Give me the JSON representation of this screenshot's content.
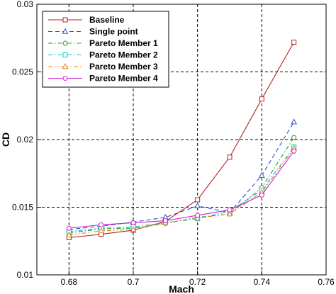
{
  "chart_data": {
    "type": "line",
    "title": "",
    "xlabel": "Mach",
    "ylabel": "CD",
    "xlim": [
      0.67,
      0.76
    ],
    "ylim": [
      0.01,
      0.03
    ],
    "xticks": [
      "0.68",
      "0.7",
      "0.72",
      "0.74",
      "0.76"
    ],
    "xtick_values": [
      0.68,
      0.7,
      0.72,
      0.74,
      0.76
    ],
    "yticks": [
      "0.01",
      "0.015",
      "0.02",
      "0.025",
      "0.03"
    ],
    "ytick_values": [
      0.01,
      0.015,
      0.02,
      0.025,
      0.03
    ],
    "grid": "dashed",
    "legend_position": "top-left",
    "x": [
      0.68,
      0.69,
      0.7,
      0.71,
      0.72,
      0.73,
      0.74,
      0.75
    ],
    "series": [
      {
        "name": "Baseline",
        "color": "#b22222",
        "marker": "square",
        "dash": "solid",
        "values": [
          0.01275,
          0.013,
          0.0133,
          0.01395,
          0.01555,
          0.0187,
          0.023,
          0.0272
        ]
      },
      {
        "name": "Single point",
        "color": "#3050d0",
        "marker": "triangle",
        "dash": "dash",
        "values": [
          0.01335,
          0.0136,
          0.0139,
          0.01425,
          0.0151,
          0.0146,
          0.01735,
          0.0213
        ]
      },
      {
        "name": "Pareto Member 1",
        "color": "#20a020",
        "marker": "circle",
        "dash": "dashdot",
        "values": [
          0.0131,
          0.0134,
          0.01345,
          0.0138,
          0.01425,
          0.0145,
          0.01645,
          0.02015
        ]
      },
      {
        "name": "Pareto Member 2",
        "color": "#00c8c8",
        "marker": "square",
        "dash": "dashdot",
        "values": [
          0.0132,
          0.01345,
          0.01355,
          0.01385,
          0.01415,
          0.0147,
          0.01625,
          0.01945
        ]
      },
      {
        "name": "Pareto Member 3",
        "color": "#e08020",
        "marker": "triangle",
        "dash": "dashdotdot",
        "values": [
          0.01295,
          0.01325,
          0.01335,
          0.01385,
          0.0142,
          0.0145,
          0.0161,
          0.01935
        ]
      },
      {
        "name": "Pareto Member 4",
        "color": "#d020d0",
        "marker": "circle",
        "dash": "solid",
        "values": [
          0.01345,
          0.0137,
          0.01385,
          0.014,
          0.0144,
          0.0148,
          0.0159,
          0.01915
        ]
      }
    ]
  }
}
